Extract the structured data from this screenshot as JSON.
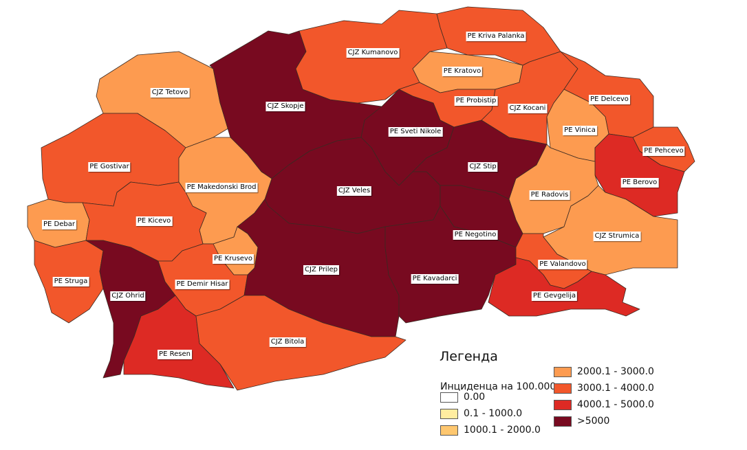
{
  "legend": {
    "title": "Легенда",
    "subtitle": "Инциденца на 100.000",
    "classes": [
      {
        "label": "0.00",
        "color": "#ffffff"
      },
      {
        "label": "0.1 - 1000.0",
        "color": "#ffeda0"
      },
      {
        "label": "1000.1 - 2000.0",
        "color": "#fec76f"
      },
      {
        "label": "2000.1 - 3000.0",
        "color": "#fd9b50"
      },
      {
        "label": "3000.1 - 4000.0",
        "color": "#f2572b"
      },
      {
        "label": "4000.1 - 5000.0",
        "color": "#dd2a24"
      },
      {
        "label": ">5000",
        "color": "#780a20"
      }
    ]
  },
  "regions": [
    {
      "name": "CJZ Tetovo",
      "class": 3
    },
    {
      "name": "CJZ Skopje",
      "class": 6
    },
    {
      "name": "CJZ Kumanovo",
      "class": 4
    },
    {
      "name": "PE Kriva Palanka",
      "class": 4
    },
    {
      "name": "PE Kratovo",
      "class": 3
    },
    {
      "name": "PE Probistip",
      "class": 4
    },
    {
      "name": "CJZ Kocani",
      "class": 4
    },
    {
      "name": "PE Delcevo",
      "class": 4
    },
    {
      "name": "PE Vinica",
      "class": 3
    },
    {
      "name": "PE Pehcevo",
      "class": 4
    },
    {
      "name": "PE Berovo",
      "class": 5
    },
    {
      "name": "PE Sveti Nikole",
      "class": 6
    },
    {
      "name": "CJZ Stip",
      "class": 6
    },
    {
      "name": "CJZ Veles",
      "class": 6
    },
    {
      "name": "PE Gostivar",
      "class": 4
    },
    {
      "name": "PE Makedonski Brod",
      "class": 3
    },
    {
      "name": "PE Debar",
      "class": 3
    },
    {
      "name": "PE Kicevo",
      "class": 4
    },
    {
      "name": "PE Radovis",
      "class": 3
    },
    {
      "name": "CJZ Strumica",
      "class": 3
    },
    {
      "name": "PE Negotino",
      "class": 6
    },
    {
      "name": "PE Krusevo",
      "class": 3
    },
    {
      "name": "PE Struga",
      "class": 4
    },
    {
      "name": "CJZ Ohrid",
      "class": 6
    },
    {
      "name": "PE Demir Hisar",
      "class": 4
    },
    {
      "name": "CJZ Prilep",
      "class": 6
    },
    {
      "name": "PE Kavadarci",
      "class": 6
    },
    {
      "name": "PE Valandovo",
      "class": 4
    },
    {
      "name": "PE Gevgelija",
      "class": 5
    },
    {
      "name": "PE Resen",
      "class": 5
    },
    {
      "name": "CJZ Bitola",
      "class": 4
    }
  ]
}
